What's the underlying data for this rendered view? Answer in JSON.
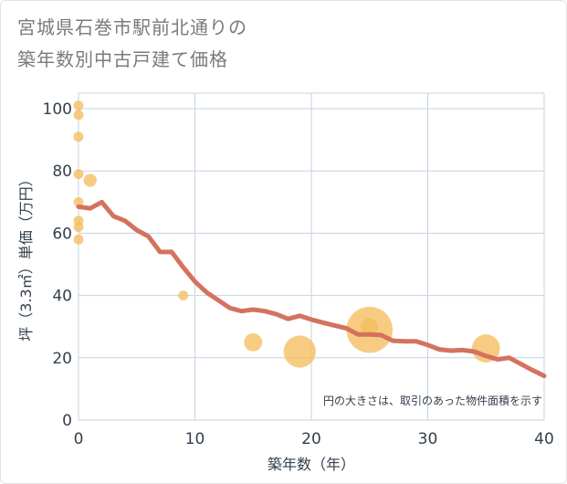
{
  "title_line1": "宮城県石巻市駅前北通りの",
  "title_line2": "築年数別中古戸建て価格",
  "note": "円の大きさは、取引のあった物件面積を示す",
  "colors": {
    "line": "#d4725e",
    "bubble": "#f5be5f",
    "grid": "#c6d3e0",
    "axis_text": "#333f4b",
    "title_text": "#7a7a7a"
  },
  "chart_data": {
    "type": "scatter",
    "xlabel": "築年数（年）",
    "ylabel": "坪（3.3㎡）単価（万円）",
    "xlim": [
      0,
      40
    ],
    "ylim": [
      0,
      105
    ],
    "x_ticks": [
      0,
      10,
      20,
      30,
      40
    ],
    "y_ticks": [
      0,
      20,
      40,
      60,
      80,
      100
    ],
    "grid": true,
    "bubbles": [
      {
        "x": 0,
        "y": 101,
        "size": 1
      },
      {
        "x": 0,
        "y": 98,
        "size": 1
      },
      {
        "x": 0,
        "y": 91,
        "size": 1
      },
      {
        "x": 0,
        "y": 79,
        "size": 1
      },
      {
        "x": 0,
        "y": 70,
        "size": 1
      },
      {
        "x": 0,
        "y": 64,
        "size": 1
      },
      {
        "x": 0,
        "y": 62,
        "size": 1
      },
      {
        "x": 0,
        "y": 58,
        "size": 1
      },
      {
        "x": 1,
        "y": 77,
        "size": 1.3
      },
      {
        "x": 9,
        "y": 40,
        "size": 1
      },
      {
        "x": 15,
        "y": 25,
        "size": 1.8
      },
      {
        "x": 19,
        "y": 22,
        "size": 3.2
      },
      {
        "x": 25,
        "y": 29,
        "size": 4.6
      },
      {
        "x": 25,
        "y": 30,
        "size": 1.7
      },
      {
        "x": 35,
        "y": 23,
        "size": 2.8
      }
    ],
    "series": [
      {
        "type": "line",
        "x": [
          0,
          1,
          2,
          3,
          4,
          5,
          6,
          7,
          8,
          9,
          10,
          11,
          12,
          13,
          14,
          15,
          16,
          17,
          18,
          19,
          20,
          21,
          22,
          23,
          24,
          25,
          26,
          27,
          28,
          29,
          30,
          31,
          32,
          33,
          34,
          35,
          36,
          37,
          38,
          39,
          40
        ],
        "y": [
          68.5,
          68,
          70,
          65.5,
          64,
          61,
          59,
          54,
          54,
          49,
          44.5,
          41,
          38.5,
          36,
          35,
          35.5,
          35,
          34,
          32.5,
          33.5,
          32.3,
          31.3,
          30.4,
          29.5,
          27.5,
          27.5,
          27.3,
          25.5,
          25.3,
          25.3,
          24.1,
          22.7,
          22.3,
          22.5,
          22,
          20.6,
          19.5,
          20,
          18,
          16,
          14.2
        ]
      }
    ]
  }
}
